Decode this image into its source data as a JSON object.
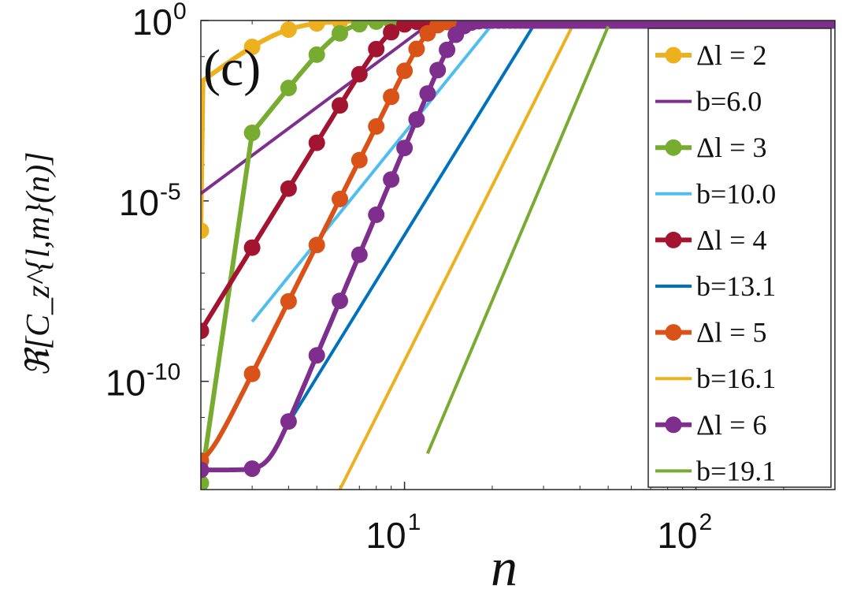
{
  "chart_data": {
    "type": "line",
    "panel_label": "(c)",
    "title": "",
    "xlabel": "n",
    "ylabel": "ℜ[C_z^{l,m}(n)]",
    "xscale": "log",
    "yscale": "log",
    "xlim": [
      2,
      300
    ],
    "ylim": [
      1e-13,
      1
    ],
    "xticks": [
      {
        "value": 10,
        "base": "10",
        "exp": "1"
      },
      {
        "value": 100,
        "base": "10",
        "exp": "2"
      }
    ],
    "yticks": [
      {
        "value": 1,
        "base": "10",
        "exp": "0"
      },
      {
        "value": 1e-05,
        "base": "10",
        "exp": "-5"
      },
      {
        "value": 1e-10,
        "base": "10",
        "exp": "-10"
      }
    ],
    "legend_position": "right",
    "series": [
      {
        "name": "Δl = 2",
        "legend_text": "Δl = 2",
        "kind": "markers",
        "color": "#EDB120",
        "dl": 2,
        "floor": 0,
        "amp": 0.02,
        "slope": 6.0
      },
      {
        "name": "b=6.0",
        "legend_text": "b=6.0",
        "kind": "fit",
        "color": "#7E2F8E",
        "slope": 6.0,
        "xrange": [
          2,
          15
        ],
        "anchor": [
          2,
          1.6e-05
        ]
      },
      {
        "name": "Δl = 3",
        "legend_text": "Δl = 3",
        "kind": "markers",
        "color": "#77AC30",
        "dl": 3,
        "floor": 1.5e-13,
        "amp": 0.00077,
        "slope": 10.0
      },
      {
        "name": "b=10.0",
        "legend_text": "b=10.0",
        "kind": "fit",
        "color": "#4DBEEE",
        "slope": 10.0,
        "xrange": [
          3,
          22.5
        ],
        "anchor": [
          3,
          4.5e-09
        ]
      },
      {
        "name": "Δl = 4",
        "legend_text": "Δl = 4",
        "kind": "markers",
        "color": "#A2142F",
        "dl": 4,
        "floor": 4e-13,
        "amp": 2.2e-05,
        "slope": 13.1
      },
      {
        "name": "b=13.1",
        "legend_text": "b=13.1",
        "kind": "fit",
        "color": "#0072BD",
        "slope": 13.1,
        "xrange": [
          3.9,
          33
        ],
        "anchor": [
          3.9,
          5e-12
        ]
      },
      {
        "name": "Δl = 5",
        "legend_text": "Δl = 5",
        "kind": "markers",
        "color": "#D95319",
        "dl": 5,
        "floor": 4e-13,
        "amp": 6e-07,
        "slope": 16.1
      },
      {
        "name": "b=16.1",
        "legend_text": "b=16.1",
        "kind": "fit",
        "color": "#EDB120",
        "slope": 16.1,
        "xrange": [
          6,
          41
        ],
        "anchor": [
          6,
          1e-13
        ]
      },
      {
        "name": "Δl = 6",
        "legend_text": "Δl = 6",
        "kind": "markers",
        "color": "#7E2F8E",
        "dl": 6,
        "floor": 3.5e-13,
        "amp": 1.7e-08,
        "slope": 19.1
      },
      {
        "name": "b=19.1",
        "legend_text": "b=19.1",
        "kind": "fit",
        "color": "#77AC30",
        "slope": 19.1,
        "xrange": [
          12,
          50
        ],
        "anchor": [
          12,
          1e-12
        ]
      }
    ]
  }
}
